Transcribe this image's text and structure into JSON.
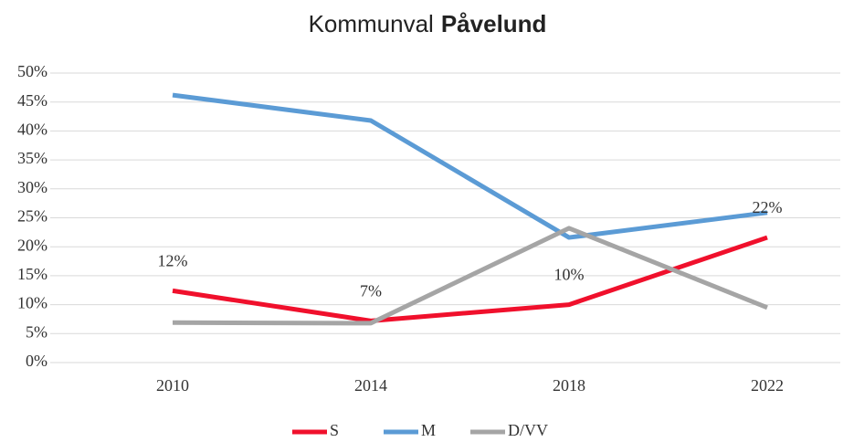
{
  "chart_data": {
    "type": "line",
    "title": "Kommunval",
    "title_bold": "Påvelund",
    "categories": [
      "2010",
      "2014",
      "2018",
      "2022"
    ],
    "series": [
      {
        "name": "S",
        "color": "#f0102c",
        "values": [
          12.4,
          7.2,
          10.0,
          21.6
        ],
        "value_labels": [
          "12%",
          "7%",
          "10%",
          "22%"
        ]
      },
      {
        "name": "M",
        "color": "#5b9bd5",
        "values": [
          46.2,
          41.8,
          21.6,
          25.9
        ]
      },
      {
        "name": "D/VV",
        "color": "#a5a5a5",
        "values": [
          6.9,
          6.8,
          23.2,
          9.5
        ]
      }
    ],
    "ylim": [
      0,
      50
    ],
    "yticks": [
      {
        "value": 0,
        "label": "0%"
      },
      {
        "value": 5,
        "label": "5%"
      },
      {
        "value": 10,
        "label": "10%"
      },
      {
        "value": 15,
        "label": "15%"
      },
      {
        "value": 20,
        "label": "20%"
      },
      {
        "value": 25,
        "label": "25%"
      },
      {
        "value": 30,
        "label": "30%"
      },
      {
        "value": 35,
        "label": "35%"
      },
      {
        "value": 40,
        "label": "40%"
      },
      {
        "value": 45,
        "label": "45%"
      },
      {
        "value": 50,
        "label": "50%"
      }
    ],
    "grid": true,
    "legend": "bottom"
  }
}
